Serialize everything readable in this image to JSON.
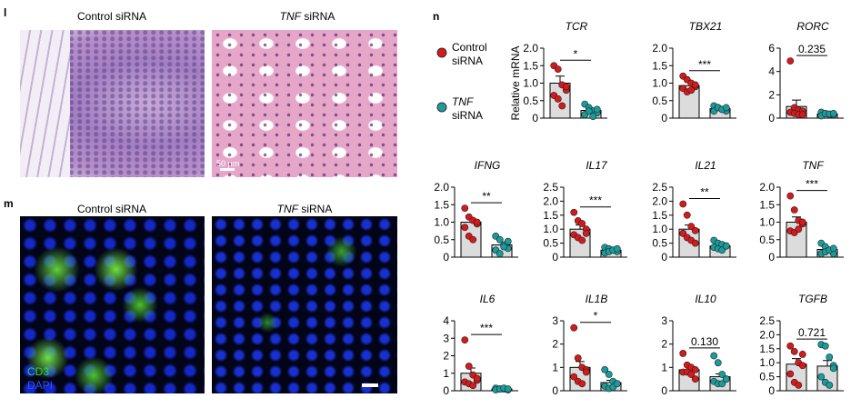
{
  "panels": {
    "l": {
      "letter": "l",
      "left": "Control siRNA",
      "right_italic": "TNF",
      "right": "siRNA",
      "scale": "50 µm"
    },
    "m": {
      "letter": "m",
      "left": "Control siRNA",
      "right_italic": "TNF",
      "right": "siRNA",
      "stain1": "CD3",
      "stain2": "DAPI"
    },
    "n": {
      "letter": "n"
    }
  },
  "legend": [
    {
      "name": "Control",
      "name2": "siRNA",
      "color": "#d7191c"
    },
    {
      "name_italic": "TNF",
      "name2": "siRNA",
      "color": "#1a9c9c"
    }
  ],
  "chart_data": [
    {
      "type": "bar",
      "title": "TCR",
      "ylabel": "Relative mRNA",
      "ylim": [
        0,
        2
      ],
      "yticks": [
        0,
        0.5,
        {
          "value": 1,
          "label": "1.0"
        },
        1.5,
        {
          "value": 2,
          "label": "2.0"
        }
      ],
      "means": [
        1.0,
        0.22
      ],
      "errors": [
        0.2,
        0.07
      ],
      "points": [
        [
          1.5,
          1.4,
          0.95,
          0.8,
          0.65,
          0.55,
          0.35,
          0.9
        ],
        [
          0.4,
          0.3,
          0.2,
          0.15,
          0.1,
          0.2,
          0.05,
          0.25
        ]
      ],
      "annotation": "*"
    },
    {
      "type": "bar",
      "title": "TBX21",
      "ylim": [
        0,
        2
      ],
      "yticks": [
        0,
        0.5,
        {
          "value": 1,
          "label": "1.0"
        },
        1.5,
        {
          "value": 2,
          "label": "2.0"
        }
      ],
      "means": [
        0.93,
        0.27
      ],
      "errors": [
        0.1,
        0.04
      ],
      "points": [
        [
          1.2,
          1.1,
          1.0,
          0.9,
          0.85,
          0.75,
          0.8,
          0.95
        ],
        [
          0.35,
          0.3,
          0.25,
          0.2,
          0.2,
          0.3,
          0.25,
          0.3
        ]
      ],
      "annotation": "***"
    },
    {
      "type": "bar",
      "title": "RORC",
      "ylim": [
        0,
        6
      ],
      "yticks": [
        0,
        2,
        4,
        6
      ],
      "means": [
        1.0,
        0.35
      ],
      "errors": [
        0.55,
        0.08
      ],
      "points": [
        [
          4.9,
          0.9,
          0.7,
          0.6,
          0.5,
          0.4,
          0.3,
          0.3
        ],
        [
          0.5,
          0.4,
          0.3,
          0.3,
          0.2,
          0.4,
          0.35,
          0.4
        ]
      ],
      "annotation": "0.235"
    },
    {
      "type": "bar",
      "title": "IFNG",
      "ylim": [
        0,
        2
      ],
      "yticks": [
        0,
        0.5,
        {
          "value": 1,
          "label": "1.0"
        },
        1.5,
        {
          "value": 2,
          "label": "2.0"
        }
      ],
      "means": [
        1.0,
        0.35
      ],
      "errors": [
        0.12,
        0.08
      ],
      "points": [
        [
          1.4,
          1.15,
          1.05,
          0.95,
          0.85,
          0.6,
          0.5,
          1.0
        ],
        [
          0.6,
          0.5,
          0.35,
          0.25,
          0.2,
          0.1,
          0.3,
          0.45
        ]
      ],
      "annotation": "**"
    },
    {
      "type": "bar",
      "title": "IL17",
      "ylim": [
        0,
        2.5
      ],
      "yticks": [
        0,
        0.5,
        {
          "value": 1,
          "label": "1.0"
        },
        1.5,
        {
          "value": 2,
          "label": "2.0"
        },
        2.5
      ],
      "means": [
        1.0,
        0.25
      ],
      "errors": [
        0.15,
        0.04
      ],
      "points": [
        [
          1.6,
          1.3,
          1.2,
          1.0,
          0.8,
          0.7,
          0.6,
          0.85
        ],
        [
          0.35,
          0.3,
          0.25,
          0.2,
          0.15,
          0.2,
          0.25,
          0.3
        ]
      ],
      "annotation": "***"
    },
    {
      "type": "bar",
      "title": "IL21",
      "ylim": [
        0,
        2.5
      ],
      "yticks": [
        0,
        0.5,
        {
          "value": 1,
          "label": "1.0"
        },
        1.5,
        {
          "value": 2,
          "label": "2.0"
        },
        2.5
      ],
      "means": [
        1.0,
        0.4
      ],
      "errors": [
        0.15,
        0.05
      ],
      "points": [
        [
          1.9,
          1.5,
          1.1,
          0.95,
          0.85,
          0.7,
          0.6,
          0.5
        ],
        [
          0.6,
          0.5,
          0.45,
          0.4,
          0.35,
          0.3,
          0.25,
          0.4
        ]
      ],
      "annotation": "**"
    },
    {
      "type": "bar",
      "title": "TNF",
      "ylim": [
        0,
        2
      ],
      "yticks": [
        0,
        0.5,
        {
          "value": 1,
          "label": "1.0"
        },
        1.5,
        {
          "value": 2,
          "label": "2.0"
        }
      ],
      "means": [
        1.0,
        0.22
      ],
      "errors": [
        0.15,
        0.05
      ],
      "points": [
        [
          1.75,
          1.35,
          1.05,
          0.95,
          0.75,
          0.7,
          0.8,
          1.0
        ],
        [
          0.4,
          0.3,
          0.2,
          0.1,
          0.1,
          0.15,
          0.2,
          0.25
        ]
      ],
      "annotation": "***"
    },
    {
      "type": "bar",
      "title": "IL6",
      "ylim": [
        0,
        4
      ],
      "yticks": [
        0,
        1,
        2,
        3,
        4
      ],
      "means": [
        1.0,
        0.1
      ],
      "errors": [
        0.3,
        0.03
      ],
      "points": [
        [
          2.9,
          1.4,
          0.9,
          0.6,
          0.5,
          0.4,
          0.3,
          0.7
        ],
        [
          0.15,
          0.1,
          0.1,
          0.05,
          0.05,
          0.1,
          0.15,
          0.1
        ]
      ],
      "annotation": "***"
    },
    {
      "type": "bar",
      "title": "IL1B",
      "ylim": [
        0,
        3
      ],
      "yticks": [
        0,
        1,
        2,
        3
      ],
      "means": [
        1.0,
        0.35
      ],
      "errors": [
        0.25,
        0.1
      ],
      "points": [
        [
          2.7,
          1.4,
          1.0,
          0.9,
          0.6,
          0.4,
          0.3,
          0.8
        ],
        [
          0.9,
          0.7,
          0.4,
          0.3,
          0.2,
          0.1,
          0.15,
          0.3
        ]
      ],
      "annotation": "*"
    },
    {
      "type": "bar",
      "title": "IL10",
      "ylim": [
        0,
        3
      ],
      "yticks": [
        0,
        1,
        2,
        3
      ],
      "means": [
        0.9,
        0.6
      ],
      "errors": [
        0.15,
        0.12
      ],
      "points": [
        [
          1.6,
          1.1,
          1.0,
          0.9,
          0.8,
          0.8,
          0.7,
          0.5
        ],
        [
          1.5,
          1.2,
          0.7,
          0.5,
          0.4,
          0.3,
          0.3,
          0.5
        ]
      ],
      "annotation": "0.130"
    },
    {
      "type": "bar",
      "title": "TGFB",
      "ylim": [
        0,
        2.5
      ],
      "yticks": [
        0,
        0.5,
        {
          "value": 1,
          "label": "1.0"
        },
        1.5,
        {
          "value": 2,
          "label": "2.0"
        },
        2.5
      ],
      "means": [
        0.95,
        0.88
      ],
      "errors": [
        0.2,
        0.2
      ],
      "points": [
        [
          1.6,
          1.4,
          1.0,
          0.9,
          0.6,
          0.3,
          0.2,
          1.3
        ],
        [
          1.65,
          1.6,
          1.2,
          0.9,
          0.5,
          0.3,
          0.2,
          0.8
        ]
      ],
      "annotation": "0.721"
    }
  ]
}
